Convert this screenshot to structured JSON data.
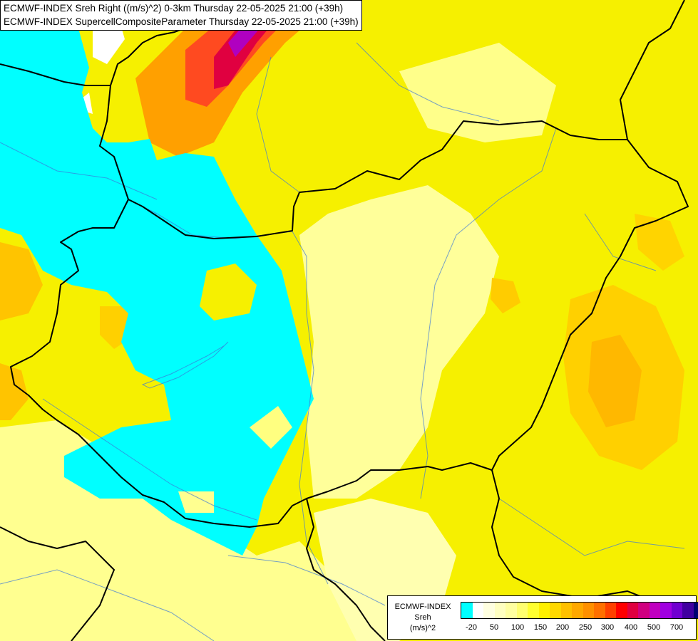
{
  "titles": {
    "line1": "ECMWF-INDEX Sreh Right ((m/s)^2) 0-3km Thursday 22-05-2025 21:00 (+39h)",
    "line2": "ECMWF-INDEX SupercellCompositeParameter Thursday 22-05-2025 21:00 (+39h)"
  },
  "legend": {
    "source": "ECMWF-INDEX",
    "variable": "Sreh",
    "unit": "(m/s)^2",
    "colors": [
      "#00ffff",
      "#ffffff",
      "#ffffe0",
      "#ffffc0",
      "#ffffa0",
      "#ffff70",
      "#ffff30",
      "#fff000",
      "#ffd800",
      "#ffc000",
      "#ffa800",
      "#ff9000",
      "#ff7000",
      "#ff4000",
      "#ff0000",
      "#e00040",
      "#d00080",
      "#c000c0",
      "#a000e0",
      "#7000d0",
      "#4000a0",
      "#000070"
    ],
    "ticks": [
      "-20",
      "50",
      "100",
      "150",
      "200",
      "250",
      "300",
      "400",
      "500",
      "700"
    ]
  },
  "colors": {
    "cyan": "#00ffff",
    "yellow": "#f6f000",
    "pale_yellow": "#ffff90",
    "orange": "#ffc000",
    "red": "#ff2020",
    "magenta": "#c000c0",
    "border": "#000000",
    "river": "#3c78d8"
  }
}
